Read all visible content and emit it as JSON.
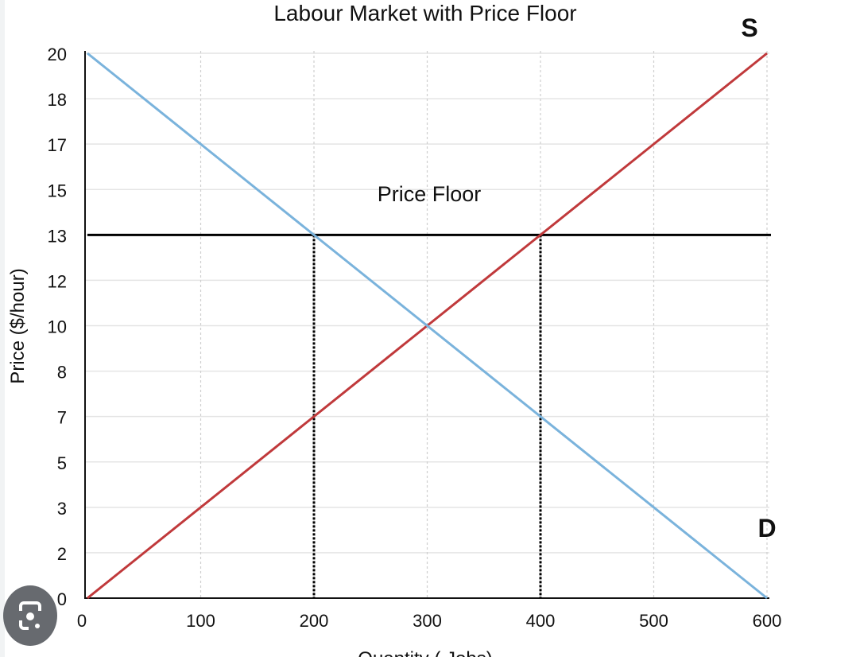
{
  "chart_data": {
    "type": "line",
    "title": "Labour Market with Price Floor",
    "xlabel": "Quantity ( Jobs)",
    "ylabel": "Price ($/hour)",
    "x_ticks": [
      0,
      100,
      200,
      300,
      400,
      500,
      600
    ],
    "y_ticks": [
      0,
      2,
      3,
      5,
      7,
      8,
      10,
      12,
      13,
      15,
      17,
      18,
      20
    ],
    "xlim": [
      0,
      600
    ],
    "ylim": [
      0,
      20
    ],
    "grid": true,
    "series": [
      {
        "name": "S",
        "color": "#c0393b",
        "points": [
          [
            0,
            0
          ],
          [
            600,
            20
          ]
        ]
      },
      {
        "name": "D",
        "color": "#7ab3dc",
        "points": [
          [
            0,
            20
          ],
          [
            600,
            0
          ]
        ]
      }
    ],
    "price_floor": {
      "label": "Price Floor",
      "value": 13,
      "color": "#000000"
    },
    "dotted_markers": [
      200,
      400
    ]
  },
  "overlay": {
    "lens_icon": "google-lens-icon"
  }
}
